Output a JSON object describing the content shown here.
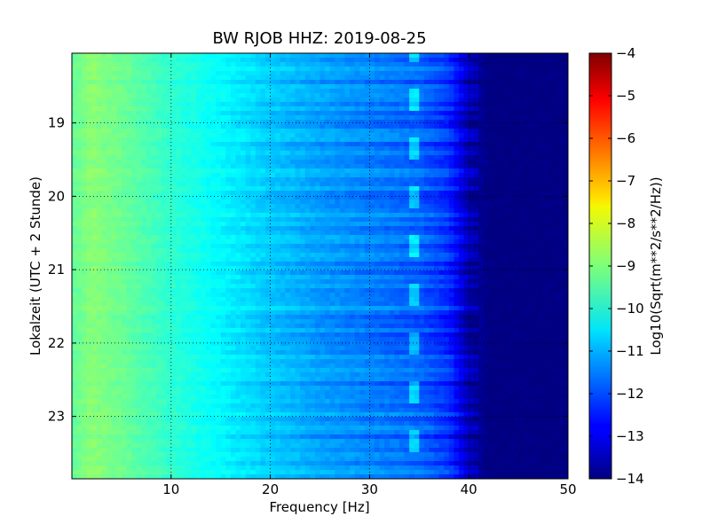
{
  "chart_data": {
    "type": "heatmap",
    "title": "BW RJOB HHZ: 2019-08-25",
    "xlabel": "Frequency [Hz]",
    "ylabel": "Lokalzeit (UTC + 2 Stunde)",
    "xlim": [
      0,
      50
    ],
    "ylim": [
      18.05,
      23.85
    ],
    "y_inverted": true,
    "grid": true,
    "x_ticks": [
      10,
      20,
      30,
      40,
      50
    ],
    "y_ticks": [
      19,
      20,
      21,
      22,
      23
    ],
    "colorbar": {
      "label": "Log10(Sqrt(m**2/s**2/Hz))",
      "range": [
        -14,
        -4
      ],
      "ticks": [
        -4,
        -5,
        -6,
        -7,
        -8,
        -9,
        -10,
        -11,
        -12,
        -13,
        -14
      ],
      "colormap": "jet"
    },
    "approx_spectrum_vs_frequency": {
      "frequency_hz": [
        0,
        2,
        5,
        10,
        15,
        20,
        25,
        30,
        35,
        38,
        40,
        42,
        45,
        50
      ],
      "log10_amplitude": [
        -9.3,
        -8.9,
        -9.2,
        -9.8,
        -10.3,
        -10.8,
        -11.2,
        -11.5,
        -11.8,
        -12.3,
        -13.5,
        -14.0,
        -14.0,
        -14.0
      ]
    },
    "narrowband_line_hz": 34.5
  }
}
